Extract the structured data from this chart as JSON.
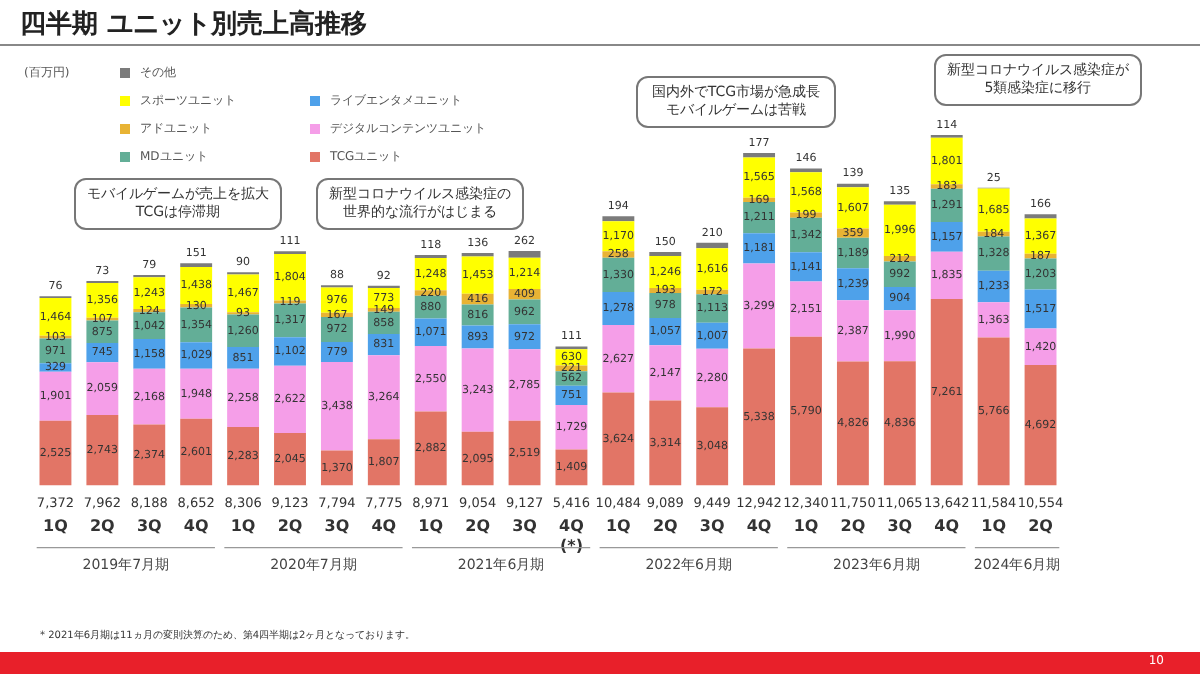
{
  "chart_data": {
    "type": "bar",
    "title": "四半期 ユニット別売上高推移",
    "ylabel": "(百万円)",
    "categories": [
      "1Q",
      "2Q",
      "3Q",
      "4Q",
      "1Q",
      "2Q",
      "3Q",
      "4Q",
      "1Q",
      "2Q",
      "3Q",
      "4Q\n(*)",
      "1Q",
      "2Q",
      "3Q",
      "4Q",
      "1Q",
      "2Q",
      "3Q",
      "4Q",
      "1Q",
      "2Q"
    ],
    "stacked": true,
    "legend": "top left",
    "tick_labels": "x",
    "grid": false,
    "ylim": [
      0,
      15000
    ],
    "series": [
      {
        "name": "TCGユニット",
        "color": "#e27566",
        "values": [
          2525,
          2743,
          2374,
          2601,
          2283,
          2045,
          1370,
          1807,
          2882,
          2095,
          2519,
          1409,
          3624,
          3314,
          3048,
          5338,
          5790,
          4826,
          4836,
          7261,
          5766,
          4692
        ],
        "value_labels": [
          "2,525",
          "2,743",
          "2,374",
          "2,601",
          "2,283",
          "2,045",
          "1,370",
          "1,807",
          "2,882",
          "2,095",
          "2,519",
          "1,409",
          "3,624",
          "3,314",
          "3,048",
          "5,338",
          "5,790",
          "4,826",
          "4,836",
          "7,261",
          "5,766",
          "4,692"
        ]
      },
      {
        "name": "デジタルコンテンツユニット",
        "color": "#f59ee8",
        "values": [
          1901,
          2059,
          2168,
          1948,
          2258,
          2622,
          3438,
          3264,
          2550,
          3243,
          2785,
          1729,
          2627,
          2147,
          2280,
          3299,
          2151,
          2387,
          1990,
          1835,
          1363,
          1420
        ],
        "value_labels": [
          "1,901",
          "2,059",
          "2,168",
          "1,948",
          "2,258",
          "2,622",
          "3,438",
          "3,264",
          "2,550",
          "3,243",
          "2,785",
          "1,729",
          "2,627",
          "2,147",
          "2,280",
          "3,299",
          "2,151",
          "2,387",
          "1,990",
          "1,835",
          "1,363",
          "1,420"
        ]
      },
      {
        "name": "ライブエンタメユニット",
        "color": "#4ea1ea",
        "values": [
          329,
          745,
          1158,
          1029,
          851,
          1102,
          779,
          831,
          1071,
          893,
          972,
          751,
          1278,
          1057,
          1007,
          1181,
          1141,
          1239,
          904,
          1157,
          1233,
          1517
        ],
        "value_labels": [
          "329",
          "745",
          "1,158",
          "1,029",
          "851",
          "1,102",
          "779",
          "831",
          "1,071",
          "893",
          "972",
          "751",
          "1,278",
          "1,057",
          "1,007",
          "1,181",
          "1,141",
          "1,239",
          "904",
          "1,157",
          "1,233",
          "1,517"
        ]
      },
      {
        "name": "MDユニット",
        "color": "#63ae97",
        "values": [
          971,
          875,
          1042,
          1354,
          1260,
          1317,
          972,
          858,
          880,
          816,
          962,
          562,
          1330,
          978,
          1113,
          1211,
          1342,
          1189,
          992,
          1291,
          1328,
          1203
        ],
        "value_labels": [
          "971",
          "875",
          "1,042",
          "1,354",
          "1,260",
          "1,317",
          "972",
          "858",
          "880",
          "816",
          "962",
          "562",
          "1,330",
          "978",
          "1,113",
          "1,211",
          "1,342",
          "1,189",
          "992",
          "1,291",
          "1,328",
          "1,203"
        ]
      },
      {
        "name": "アドユニット",
        "color": "#e8b334",
        "values": [
          103,
          107,
          124,
          130,
          93,
          119,
          167,
          149,
          220,
          416,
          409,
          221,
          258,
          193,
          172,
          169,
          199,
          359,
          212,
          183,
          184,
          187
        ],
        "value_labels": [
          "103",
          "107",
          "124",
          "130",
          "93",
          "119",
          "167",
          "149",
          "220",
          "416",
          "409",
          "221",
          "258",
          "193",
          "172",
          "169",
          "199",
          "359",
          "212",
          "183",
          "184",
          "187"
        ]
      },
      {
        "name": "スポーツユニット",
        "color": "#ffff00",
        "values": [
          1464,
          1356,
          1243,
          1438,
          1467,
          1804,
          976,
          773,
          1248,
          1453,
          1214,
          630,
          1170,
          1246,
          1616,
          1565,
          1568,
          1607,
          1996,
          1801,
          1685,
          1367
        ],
        "value_labels": [
          "1,464",
          "1,356",
          "1,243",
          "1,438",
          "1,467",
          "1,804",
          "976",
          "773",
          "1,248",
          "1,453",
          "1,214",
          "630",
          "1,170",
          "1,246",
          "1,616",
          "1,565",
          "1,568",
          "1,607",
          "1,996",
          "1,801",
          "1,685",
          "1,367"
        ]
      },
      {
        "name": "その他",
        "color": "#7b7b7b",
        "values": [
          76,
          73,
          79,
          151,
          90,
          111,
          88,
          92,
          118,
          136,
          262,
          111,
          194,
          150,
          210,
          177,
          146,
          139,
          135,
          114,
          25,
          166
        ],
        "value_labels": [
          "76",
          "73",
          "79",
          "151",
          "90",
          "111",
          "88",
          "92",
          "118",
          "136",
          "262",
          "111",
          "194",
          "150",
          "210",
          "177",
          "146",
          "139",
          "135",
          "114",
          "25",
          "166"
        ]
      }
    ],
    "totals": [
      "7,372",
      "7,962",
      "8,188",
      "8,652",
      "8,306",
      "9,123",
      "7,794",
      "7,775",
      "8,971",
      "9,054",
      "9,127",
      "5,416",
      "10,484",
      "9,089",
      "9,449",
      "12,942",
      "12,340",
      "11,750",
      "11,065",
      "13,642",
      "11,584",
      "10,554"
    ],
    "annotations": [
      "2019年7月期",
      "2020年7月期",
      "2021年6月期",
      "2022年6月期",
      "2023年6月期",
      "2024年6月期",
      "モバイルゲームが売上を拡大TCGは停滞期",
      "新型コロナウイルス感染症の世界的な流行がはじまる",
      "国内外でTCG市場が急成長モバイルゲームは苦戦",
      "新型コロナウイルス感染症が5類感染症に移行",
      "* 2021年6月期は11ヵ月の変則決算のため、第4四半期は2ヶ月となっております。",
      "10"
    ]
  }
}
